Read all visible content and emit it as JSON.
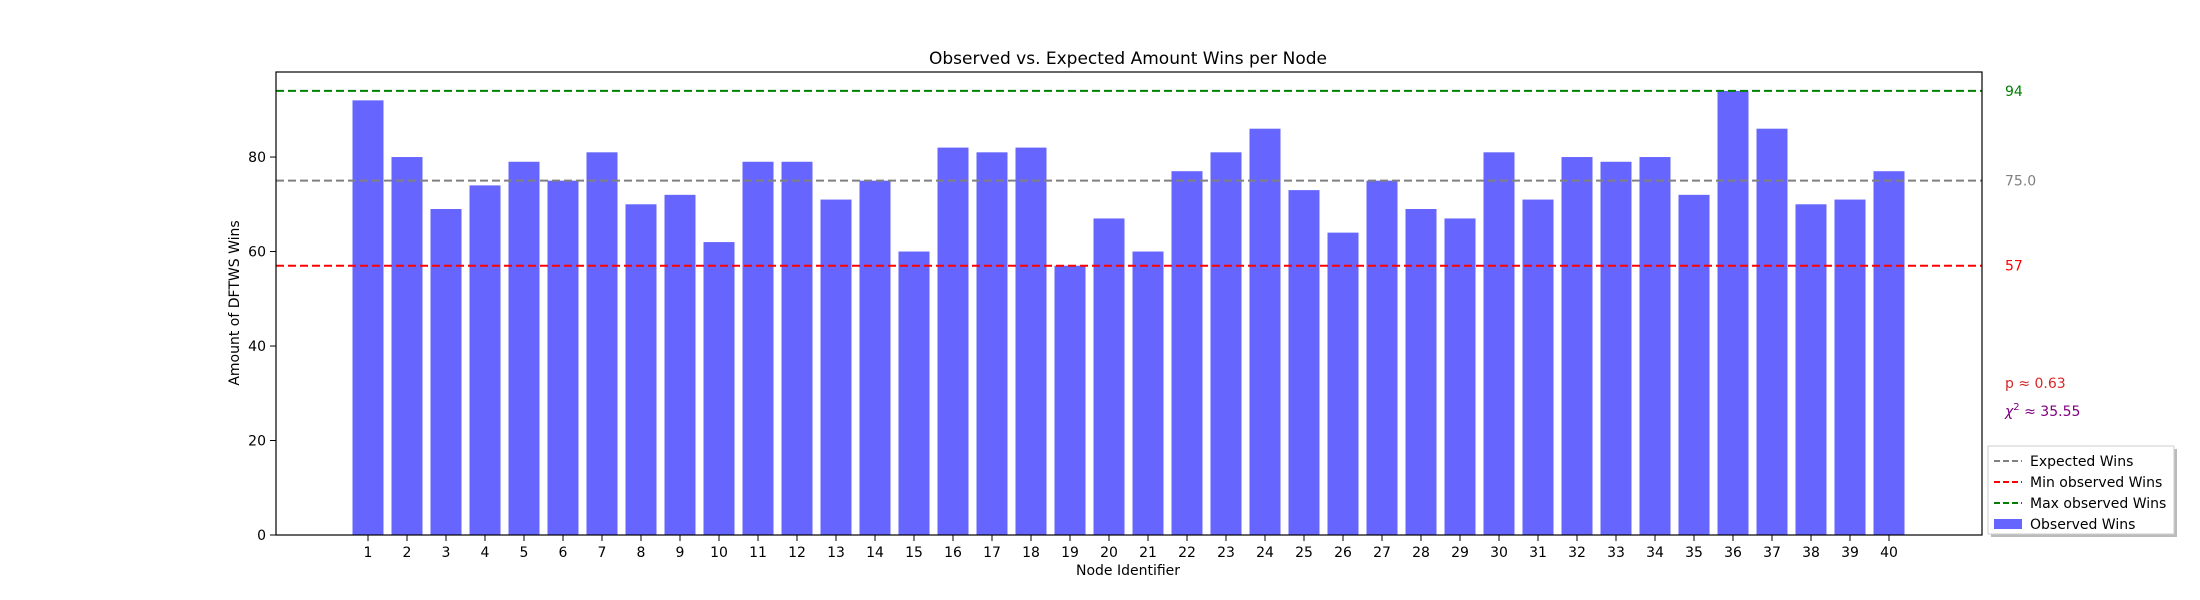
{
  "chart_data": {
    "type": "bar",
    "title": "Observed vs. Expected Amount Wins per Node",
    "xlabel": "Node Identifier",
    "ylabel": "Amount of DFTWS Wins",
    "ylim": [
      0,
      98
    ],
    "yticks": [
      0,
      20,
      40,
      60,
      80
    ],
    "grid": false,
    "legend_placement": "bottom-right outside",
    "categories": [
      "1",
      "2",
      "3",
      "4",
      "5",
      "6",
      "7",
      "8",
      "9",
      "10",
      "11",
      "12",
      "13",
      "14",
      "15",
      "16",
      "17",
      "18",
      "19",
      "20",
      "21",
      "22",
      "23",
      "24",
      "25",
      "26",
      "27",
      "28",
      "29",
      "30",
      "31",
      "32",
      "33",
      "34",
      "35",
      "36",
      "37",
      "38",
      "39",
      "40"
    ],
    "series": [
      {
        "name": "Observed Wins",
        "color": "#6666ff",
        "values": [
          92,
          80,
          69,
          74,
          79,
          75,
          81,
          70,
          72,
          62,
          79,
          79,
          71,
          75,
          60,
          82,
          81,
          82,
          57,
          67,
          60,
          77,
          81,
          86,
          73,
          64,
          75,
          69,
          67,
          81,
          71,
          80,
          79,
          80,
          72,
          94,
          86,
          70,
          71,
          77
        ]
      }
    ],
    "reference_lines": [
      {
        "name": "Expected Wins",
        "value": 75.0,
        "label": "75.0",
        "color": "#808080"
      },
      {
        "name": "Min observed Wins",
        "value": 57,
        "label": "57",
        "color": "#ff0000"
      },
      {
        "name": "Max observed Wins",
        "value": 94,
        "label": "94",
        "color": "#008000"
      }
    ],
    "annotations": {
      "p_value": "p ≈ 0.63",
      "p_color": "#d62728",
      "chi_prefix": "χ",
      "chi_sup": "2",
      "chi_value": " ≈ 35.55",
      "chi_color": "#800080"
    }
  }
}
